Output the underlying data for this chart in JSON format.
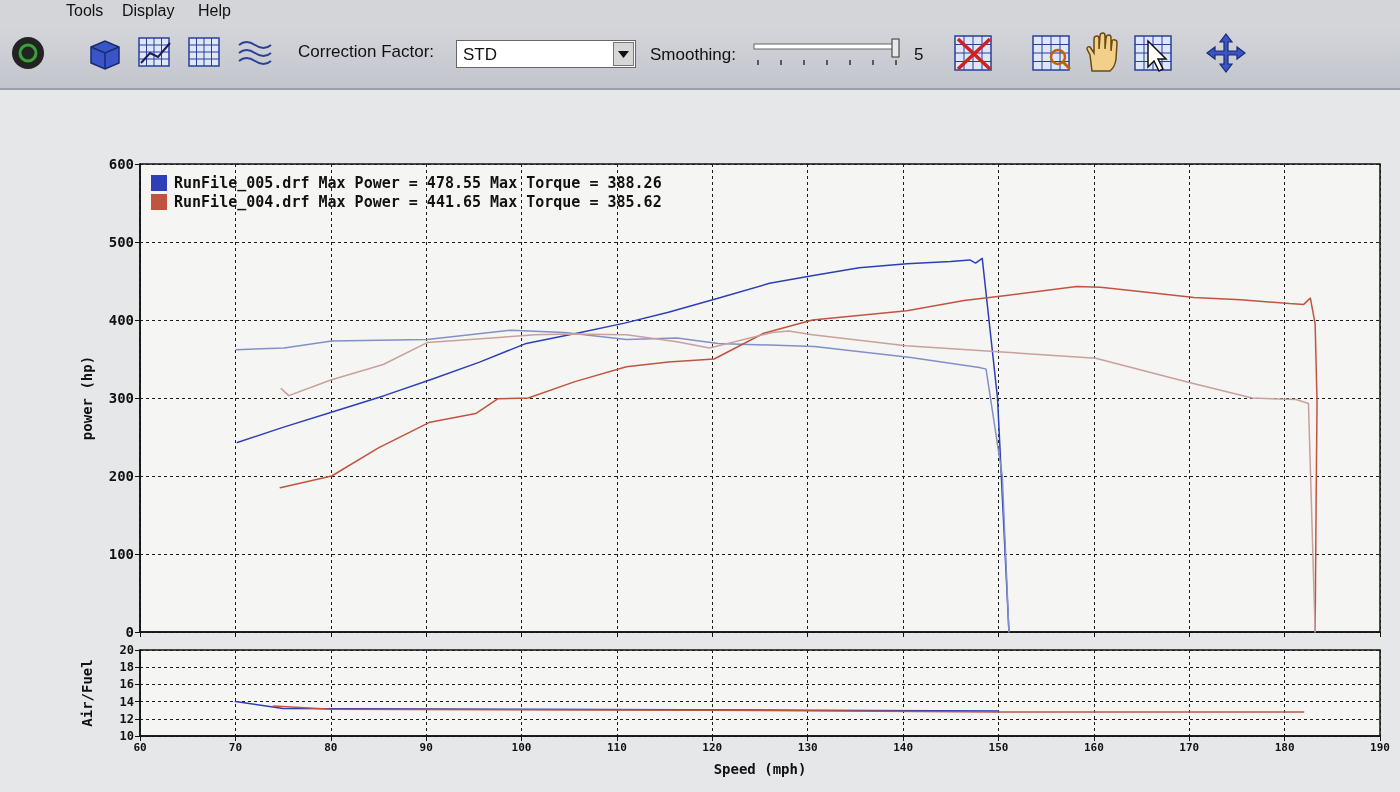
{
  "chart_data": [
    {
      "type": "line",
      "ylabel": "power (hp)",
      "annotations": [
        "Tools",
        "Display",
        "Help",
        "Correction Factor:",
        "STD",
        "Smoothing:",
        "5"
      ],
      "xlim": [
        60,
        190
      ],
      "xticks": [
        60,
        70,
        80,
        90,
        100,
        110,
        120,
        130,
        140,
        150,
        160,
        170,
        180,
        190
      ],
      "ylim": [
        0,
        600
      ],
      "yticks": [
        0,
        100,
        200,
        300,
        400,
        500,
        600
      ],
      "tick_labels": "y",
      "grid": true,
      "legend": "top left",
      "marker": "none",
      "series": [
        {
          "name": "RunFile_005.drf Max Power = 478.55 Max Torque = 388.26",
          "color": "#2c3fb8",
          "x": [
            70.2,
            74.9,
            80.4,
            85.6,
            90.6,
            95.6,
            100.5,
            105.8,
            110.8,
            115.4,
            120.6,
            126,
            130.6,
            135.4,
            140.4,
            145,
            147,
            147.6,
            148.3,
            149.9,
            151.1
          ],
          "values": [
            243,
            262,
            283,
            303,
            324,
            346,
            370,
            383,
            396,
            410,
            428,
            447,
            457,
            467,
            472,
            475,
            477,
            473,
            479,
            300,
            0
          ]
        },
        {
          "color": "#8290c8",
          "x": [
            70.1,
            75.1,
            80.1,
            90.1,
            98.9,
            104.5,
            111,
            116.3,
            120.6,
            130.7,
            140.8,
            148,
            148.7,
            150.4,
            151.1
          ],
          "values": [
            362,
            364,
            373,
            375,
            387,
            384,
            375,
            377,
            370,
            366,
            352,
            339,
            337,
            200,
            0
          ]
        },
        {
          "name": "RunFile_004.drf Max Power = 441.65 Max Torque = 385.62",
          "color": "#c0553f",
          "x": [
            74.7,
            80.1,
            85,
            90.4,
            95.2,
            97.5,
            100.7,
            105.6,
            111,
            115.4,
            120.2,
            125.4,
            130.5,
            140.4,
            146.4,
            150.6,
            158.2,
            160.7,
            165.3,
            170.5,
            175.4,
            180.5,
            182,
            182.7,
            183.2,
            183.4,
            183.3,
            183.2
          ],
          "values": [
            185,
            200,
            236,
            269,
            280,
            299,
            300,
            321,
            340,
            346,
            350,
            383,
            400,
            412,
            425,
            431,
            443,
            442,
            436,
            429,
            426,
            421,
            420,
            428,
            395,
            295,
            162,
            0
          ]
        },
        {
          "color": "#c9a09c",
          "x": [
            74.8,
            75.6,
            80,
            85.5,
            90.1,
            98,
            101.4,
            105,
            111,
            116.3,
            119.7,
            126.3,
            128,
            130.5,
            140.3,
            150.4,
            160.2,
            170,
            176.6,
            181.2,
            182.5,
            183.2
          ],
          "values": [
            312,
            303,
            323,
            343,
            371,
            378,
            381,
            382,
            381,
            372,
            364,
            384,
            386,
            381,
            367,
            359,
            351,
            320,
            300,
            298,
            293,
            0
          ]
        }
      ]
    },
    {
      "type": "line",
      "xlabel": "Speed (mph)",
      "ylabel": "Air/Fuel",
      "xlim": [
        60,
        190
      ],
      "xticks": [
        60,
        70,
        80,
        90,
        100,
        110,
        120,
        130,
        140,
        150,
        160,
        170,
        180,
        190
      ],
      "ylim": [
        10,
        20
      ],
      "yticks": [
        10,
        12,
        14,
        16,
        18,
        20
      ],
      "grid": true,
      "marker": "none",
      "series": [
        {
          "color": "#2c3fb8",
          "x": [
            70,
            75,
            100,
            130,
            150
          ],
          "values": [
            14,
            13.2,
            13.1,
            13,
            12.9
          ]
        },
        {
          "color": "#c0553f",
          "x": [
            74,
            80,
            120,
            150,
            170,
            182
          ],
          "values": [
            13.5,
            13.1,
            13,
            12.8,
            12.8,
            12.8
          ]
        }
      ]
    }
  ]
}
